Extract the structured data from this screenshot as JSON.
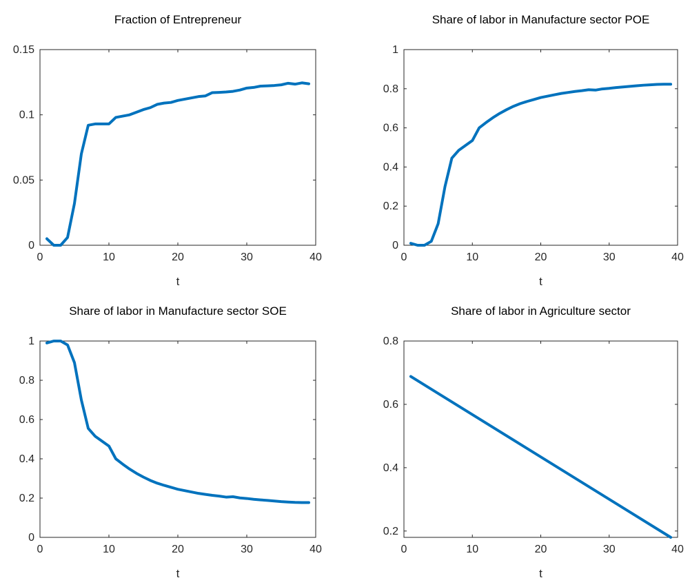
{
  "colors": {
    "series": "#0072BD",
    "axis": "#262626",
    "background": "#ffffff"
  },
  "chart_data": [
    {
      "type": "line",
      "title": "Fraction of Entrepreneur",
      "xlabel": "t",
      "ylabel": "",
      "xlim": [
        0,
        40
      ],
      "ylim": [
        0,
        0.15
      ],
      "xticks": [
        0,
        10,
        20,
        30,
        40
      ],
      "xtick_labels": [
        "0",
        "10",
        "20",
        "30",
        "40"
      ],
      "yticks": [
        0,
        0.05,
        0.1,
        0.15
      ],
      "ytick_labels": [
        "0",
        "0.05",
        "0.1",
        "0.15"
      ],
      "grid": false,
      "series": [
        {
          "x": [
            1,
            2,
            3,
            4,
            5,
            6,
            7,
            8,
            9,
            10,
            11,
            12,
            13,
            14,
            15,
            16,
            17,
            18,
            19,
            20,
            21,
            22,
            23,
            24,
            25,
            26,
            27,
            28,
            29,
            30,
            31,
            32,
            33,
            34,
            35,
            36,
            37,
            38,
            39
          ],
          "y": [
            0.005,
            0.0,
            0.0,
            0.006,
            0.032,
            0.07,
            0.092,
            0.093,
            0.093,
            0.093,
            0.098,
            0.099,
            0.1,
            0.102,
            0.104,
            0.1055,
            0.108,
            0.109,
            0.1095,
            0.111,
            0.112,
            0.113,
            0.114,
            0.1145,
            0.117,
            0.1172,
            0.1175,
            0.118,
            0.119,
            0.1205,
            0.121,
            0.122,
            0.1222,
            0.1225,
            0.123,
            0.1242,
            0.1235,
            0.1245,
            0.1238
          ]
        }
      ]
    },
    {
      "type": "line",
      "title": "Share of labor in Manufacture sector POE",
      "xlabel": "t",
      "ylabel": "",
      "xlim": [
        0,
        40
      ],
      "ylim": [
        0,
        1
      ],
      "xticks": [
        0,
        10,
        20,
        30,
        40
      ],
      "xtick_labels": [
        "0",
        "10",
        "20",
        "30",
        "40"
      ],
      "yticks": [
        0,
        0.2,
        0.4,
        0.6,
        0.8,
        1
      ],
      "ytick_labels": [
        "0",
        "0.2",
        "0.4",
        "0.6",
        "0.8",
        "1"
      ],
      "grid": false,
      "series": [
        {
          "x": [
            1,
            2,
            3,
            4,
            5,
            6,
            7,
            8,
            9,
            10,
            11,
            12,
            13,
            14,
            15,
            16,
            17,
            18,
            19,
            20,
            21,
            22,
            23,
            24,
            25,
            26,
            27,
            28,
            29,
            30,
            31,
            32,
            33,
            34,
            35,
            36,
            37,
            38,
            39
          ],
          "y": [
            0.01,
            0.0,
            0.0,
            0.02,
            0.11,
            0.3,
            0.445,
            0.485,
            0.51,
            0.535,
            0.6,
            0.627,
            0.652,
            0.674,
            0.693,
            0.71,
            0.724,
            0.735,
            0.745,
            0.755,
            0.762,
            0.769,
            0.776,
            0.781,
            0.786,
            0.79,
            0.795,
            0.793,
            0.799,
            0.802,
            0.806,
            0.809,
            0.812,
            0.815,
            0.818,
            0.82,
            0.822,
            0.823,
            0.823
          ]
        }
      ]
    },
    {
      "type": "line",
      "title": "Share of labor in Manufacture sector SOE",
      "xlabel": "t",
      "ylabel": "",
      "xlim": [
        0,
        40
      ],
      "ylim": [
        0,
        1
      ],
      "xticks": [
        0,
        10,
        20,
        30,
        40
      ],
      "xtick_labels": [
        "0",
        "10",
        "20",
        "30",
        "40"
      ],
      "yticks": [
        0,
        0.2,
        0.4,
        0.6,
        0.8,
        1
      ],
      "ytick_labels": [
        "0",
        "0.2",
        "0.4",
        "0.6",
        "0.8",
        "1"
      ],
      "grid": false,
      "series": [
        {
          "x": [
            1,
            2,
            3,
            4,
            5,
            6,
            7,
            8,
            9,
            10,
            11,
            12,
            13,
            14,
            15,
            16,
            17,
            18,
            19,
            20,
            21,
            22,
            23,
            24,
            25,
            26,
            27,
            28,
            29,
            30,
            31,
            32,
            33,
            34,
            35,
            36,
            37,
            38,
            39
          ],
          "y": [
            0.99,
            1.0,
            1.0,
            0.98,
            0.89,
            0.7,
            0.555,
            0.515,
            0.49,
            0.465,
            0.4,
            0.373,
            0.348,
            0.326,
            0.307,
            0.29,
            0.276,
            0.265,
            0.255,
            0.245,
            0.238,
            0.231,
            0.224,
            0.219,
            0.214,
            0.21,
            0.205,
            0.207,
            0.201,
            0.198,
            0.194,
            0.191,
            0.188,
            0.185,
            0.182,
            0.18,
            0.178,
            0.177,
            0.177
          ]
        }
      ]
    },
    {
      "type": "line",
      "title": "Share of labor in Agriculture sector",
      "xlabel": "t",
      "ylabel": "",
      "xlim": [
        0,
        40
      ],
      "ylim": [
        0.18,
        0.8
      ],
      "xticks": [
        0,
        10,
        20,
        30,
        40
      ],
      "xtick_labels": [
        "0",
        "10",
        "20",
        "30",
        "40"
      ],
      "yticks": [
        0.2,
        0.4,
        0.6,
        0.8
      ],
      "ytick_labels": [
        "0.2",
        "0.4",
        "0.6",
        "0.8"
      ],
      "grid": false,
      "series": [
        {
          "x": [
            1,
            39
          ],
          "y": [
            0.688,
            0.18
          ]
        }
      ]
    }
  ]
}
